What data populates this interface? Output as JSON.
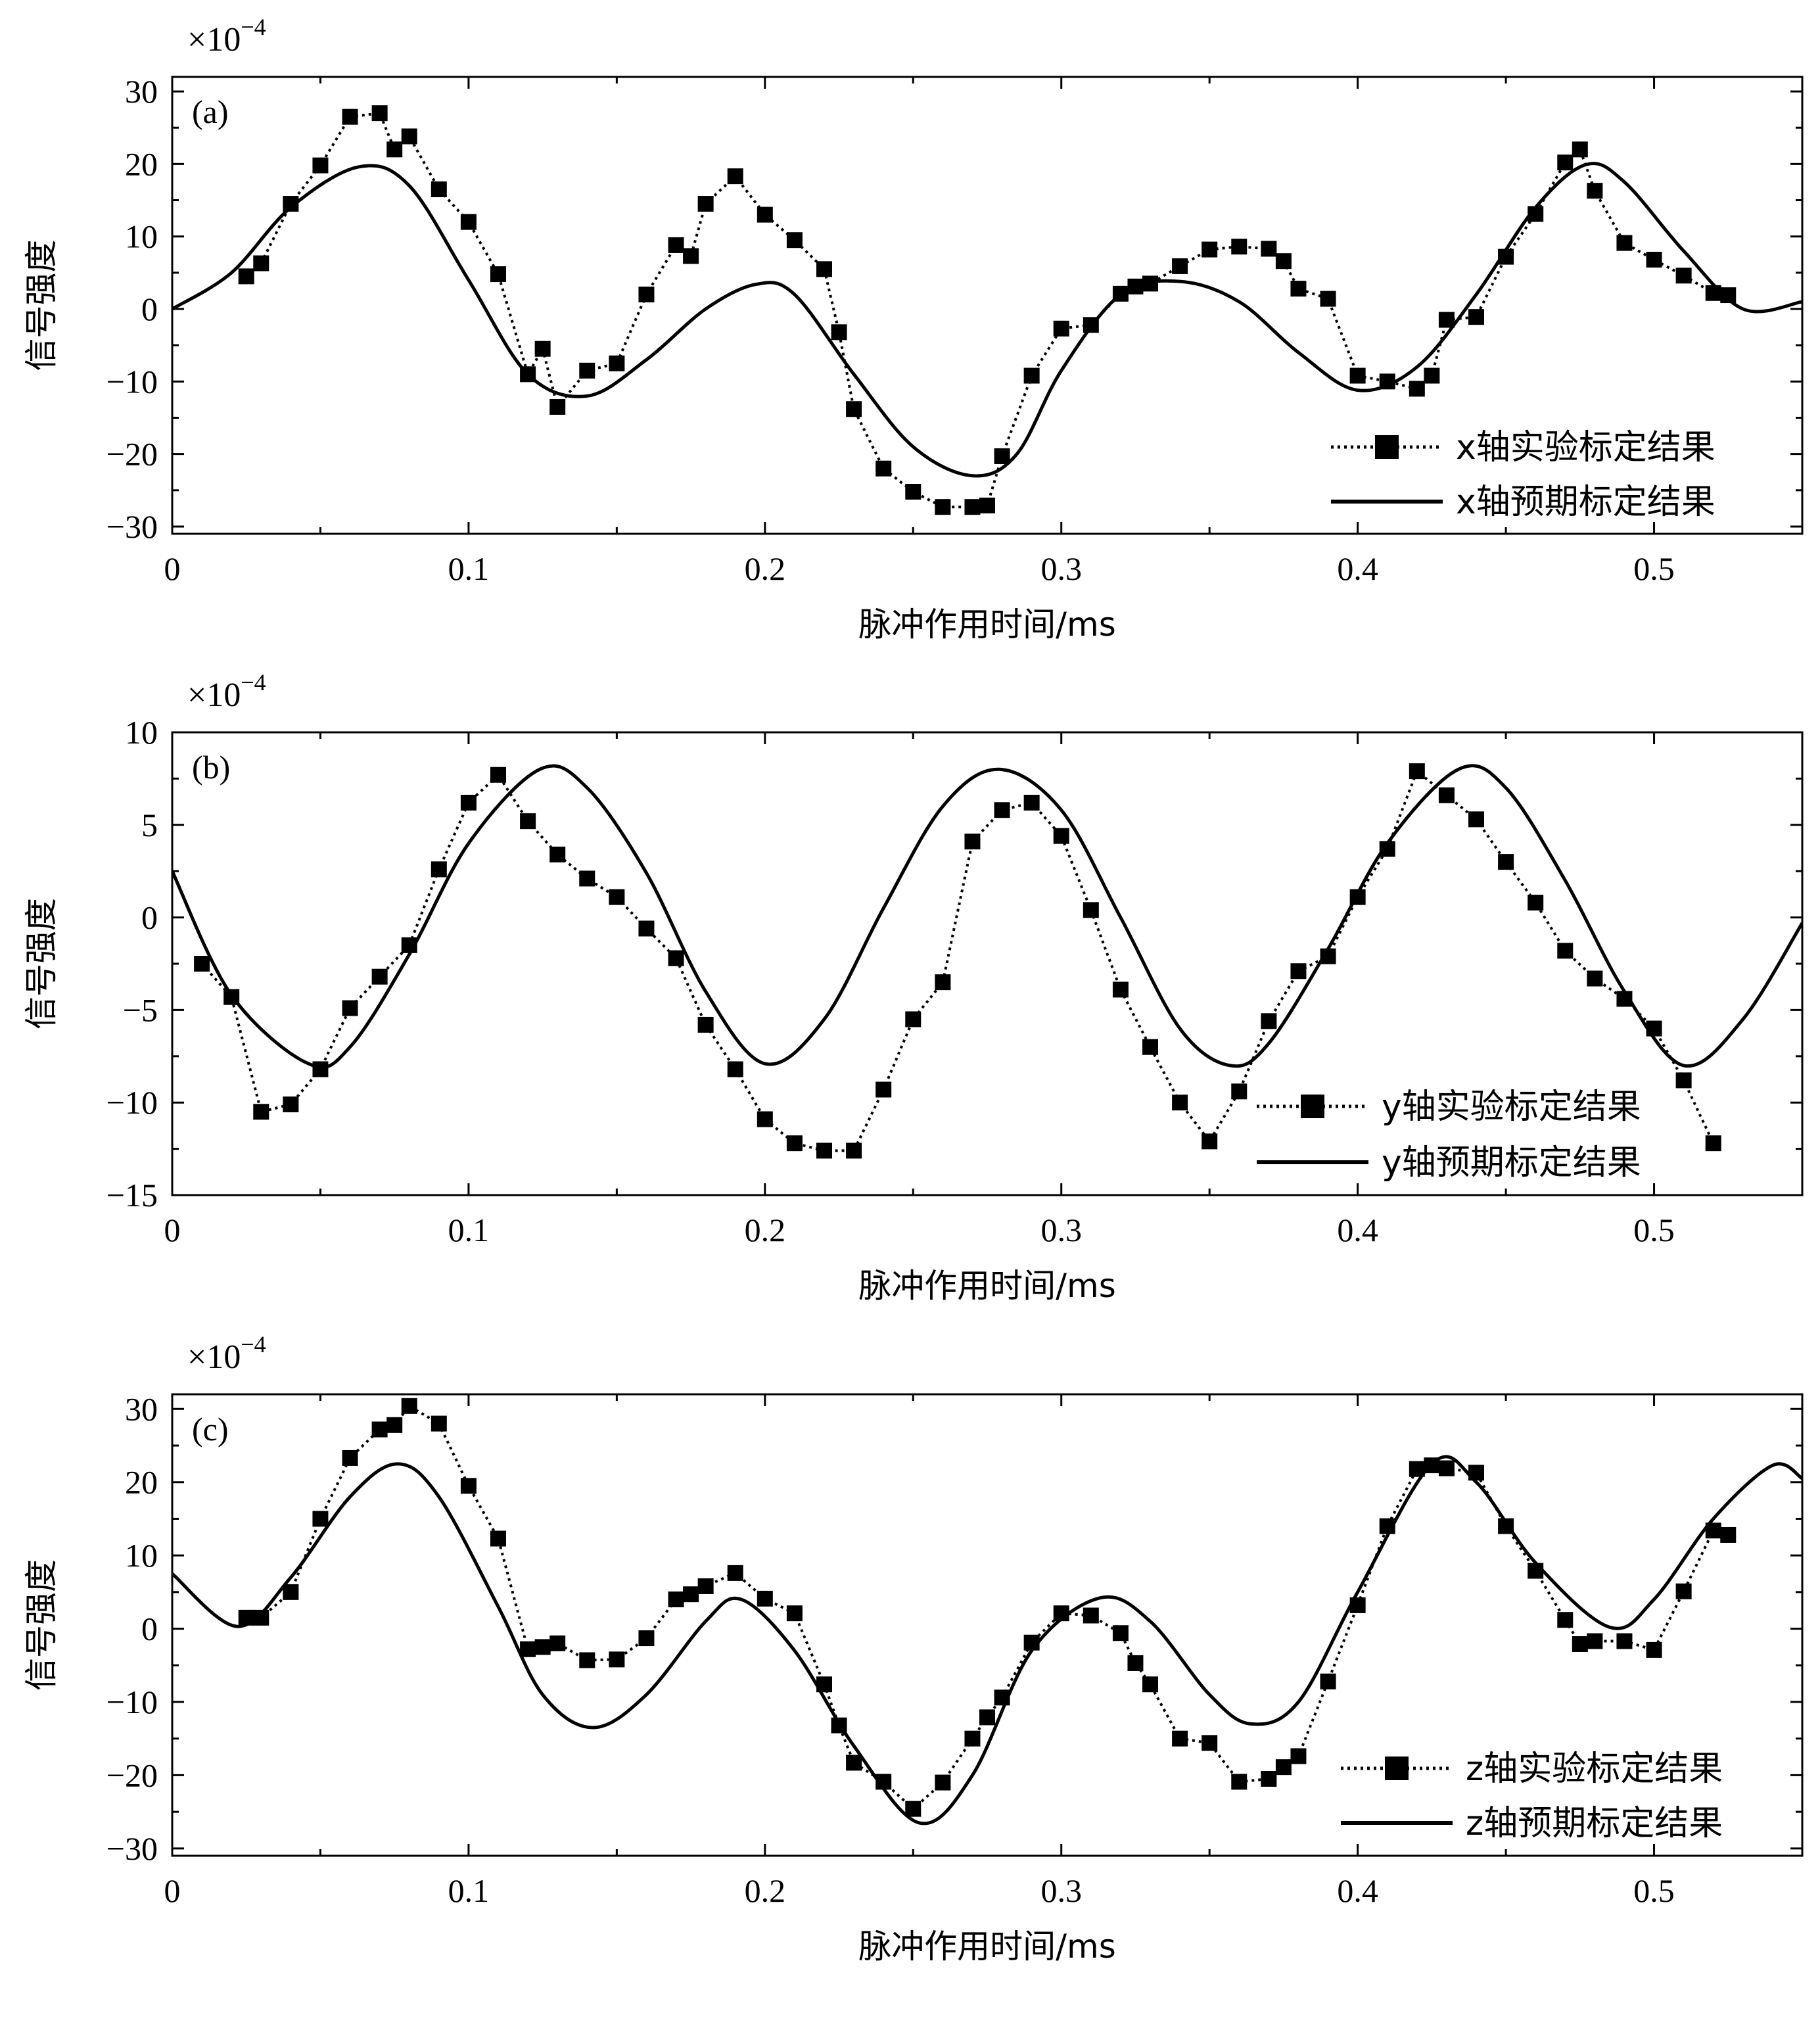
{
  "chart_data": [
    {
      "type": "line",
      "panel_label": "(a)",
      "scale_label": "×10",
      "scale_exponent": "−4",
      "xlabel": "脉冲作用时间/ms",
      "ylabel": "信号强度",
      "xlim": [
        0,
        0.55
      ],
      "ylim": [
        -31,
        32
      ],
      "xticks": [
        0,
        0.1,
        0.2,
        0.3,
        0.4,
        0.5
      ],
      "xtick_labels": [
        "0",
        "0.1",
        "0.2",
        "0.3",
        "0.4",
        "0.5"
      ],
      "yticks": [
        -30,
        -20,
        -10,
        0,
        10,
        20,
        30
      ],
      "ytick_labels": [
        "−30",
        "−20",
        "−10",
        "0",
        "10",
        "20",
        "30"
      ],
      "legend_position": "lower-right",
      "series": [
        {
          "name": "x轴实验标定结果",
          "style": "dotted-square",
          "x": [
            0.025,
            0.03,
            0.04,
            0.05,
            0.06,
            0.07,
            0.075,
            0.08,
            0.09,
            0.1,
            0.11,
            0.12,
            0.125,
            0.13,
            0.14,
            0.15,
            0.16,
            0.17,
            0.175,
            0.18,
            0.19,
            0.2,
            0.21,
            0.22,
            0.225,
            0.23,
            0.24,
            0.25,
            0.26,
            0.27,
            0.275,
            0.28,
            0.29,
            0.3,
            0.31,
            0.32,
            0.325,
            0.33,
            0.34,
            0.35,
            0.36,
            0.37,
            0.375,
            0.38,
            0.39,
            0.4,
            0.41,
            0.42,
            0.425,
            0.43,
            0.44,
            0.45,
            0.46,
            0.47,
            0.475,
            0.48,
            0.49,
            0.5,
            0.51,
            0.52,
            0.525
          ],
          "y": [
            4.5,
            6.3,
            14.5,
            19.8,
            26.5,
            27,
            22,
            23.8,
            16.5,
            12,
            4.8,
            -9,
            -5.5,
            -13.5,
            -8.5,
            -7.5,
            2,
            8.8,
            7.3,
            14.5,
            18.3,
            13,
            9.5,
            5.5,
            -3.2,
            -13.8,
            -22,
            -25.2,
            -27.3,
            -27.3,
            -27.1,
            -20.3,
            -9.2,
            -2.7,
            -2.2,
            2.1,
            3.1,
            3.5,
            5.9,
            8.2,
            8.6,
            8.3,
            6.6,
            2.8,
            1.4,
            -9.2,
            -10,
            -11,
            -9.2,
            -1.5,
            -1.1,
            7.2,
            13.1,
            20.2,
            22,
            16.3,
            9.1,
            6.8,
            4.6,
            2.2,
            1.9
          ]
        },
        {
          "name": "x轴预期标定结果",
          "style": "solid",
          "x": [
            0,
            0.02,
            0.04,
            0.063,
            0.08,
            0.1,
            0.12,
            0.14,
            0.16,
            0.18,
            0.197,
            0.21,
            0.23,
            0.25,
            0.27,
            0.285,
            0.3,
            0.32,
            0.34,
            0.36,
            0.38,
            0.4,
            0.42,
            0.44,
            0.46,
            0.477,
            0.49,
            0.51,
            0.53,
            0.55
          ],
          "y": [
            0,
            5,
            14,
            19.6,
            17,
            4,
            -9,
            -12,
            -7,
            0,
            3.4,
            2,
            -9,
            -19,
            -23,
            -20,
            -8.5,
            2,
            3.8,
            1,
            -6,
            -11.2,
            -8,
            2,
            14,
            19.9,
            17.5,
            8,
            0,
            1
          ]
        }
      ]
    },
    {
      "type": "line",
      "panel_label": "(b)",
      "scale_label": "×10",
      "scale_exponent": "−4",
      "xlabel": "脉冲作用时间/ms",
      "ylabel": "信号强度",
      "xlim": [
        0,
        0.55
      ],
      "ylim": [
        -15,
        10
      ],
      "xticks": [
        0,
        0.1,
        0.2,
        0.3,
        0.4,
        0.5
      ],
      "xtick_labels": [
        "0",
        "0.1",
        "0.2",
        "0.3",
        "0.4",
        "0.5"
      ],
      "yticks": [
        -15,
        -10,
        -5,
        0,
        5,
        10
      ],
      "ytick_labels": [
        "−15",
        "−10",
        "−5",
        "0",
        "5",
        "10"
      ],
      "legend_position": "lower-right",
      "series": [
        {
          "name": "y轴实验标定结果",
          "style": "dotted-square",
          "x": [
            0.01,
            0.02,
            0.03,
            0.04,
            0.05,
            0.06,
            0.07,
            0.08,
            0.09,
            0.1,
            0.11,
            0.12,
            0.13,
            0.14,
            0.15,
            0.16,
            0.17,
            0.18,
            0.19,
            0.2,
            0.21,
            0.22,
            0.23,
            0.24,
            0.25,
            0.26,
            0.27,
            0.28,
            0.29,
            0.3,
            0.31,
            0.32,
            0.33,
            0.34,
            0.35,
            0.36,
            0.37,
            0.38,
            0.39,
            0.4,
            0.41,
            0.42,
            0.43,
            0.44,
            0.45,
            0.46,
            0.47,
            0.48,
            0.49,
            0.5,
            0.51,
            0.52
          ],
          "y": [
            -2.5,
            -4.3,
            -10.5,
            -10.1,
            -8.2,
            -4.9,
            -3.2,
            -1.5,
            2.6,
            6.2,
            7.7,
            5.2,
            3.4,
            2.1,
            1.1,
            -0.6,
            -2.2,
            -5.8,
            -8.2,
            -10.9,
            -12.2,
            -12.6,
            -12.6,
            -9.3,
            -5.5,
            -3.5,
            4.1,
            5.8,
            6.2,
            4.4,
            0.4,
            -3.9,
            -7,
            -10,
            -12.1,
            -9.4,
            -5.6,
            -2.9,
            -2.1,
            1.1,
            3.7,
            7.9,
            6.6,
            5.3,
            3,
            0.8,
            -1.8,
            -3.3,
            -4.4,
            -6,
            -8.8,
            -12.2
          ]
        },
        {
          "name": "y轴预期标定结果",
          "style": "solid",
          "x": [
            0,
            0.02,
            0.046,
            0.06,
            0.08,
            0.1,
            0.124,
            0.14,
            0.16,
            0.18,
            0.2,
            0.22,
            0.24,
            0.26,
            0.279,
            0.3,
            0.32,
            0.34,
            0.357,
            0.37,
            0.39,
            0.41,
            0.434,
            0.45,
            0.47,
            0.49,
            0.51,
            0.53,
            0.55
          ],
          "y": [
            2.5,
            -4.2,
            -7.9,
            -7,
            -2,
            4,
            8,
            7,
            2.4,
            -4,
            -7.9,
            -5.5,
            0.5,
            6,
            8,
            5.8,
            0,
            -6,
            -8,
            -6.8,
            -1.7,
            4,
            8,
            7,
            2,
            -4,
            -8,
            -5.5,
            -0.3
          ]
        }
      ]
    },
    {
      "type": "line",
      "panel_label": "(c)",
      "scale_label": "×10",
      "scale_exponent": "−4",
      "xlabel": "脉冲作用时间/ms",
      "ylabel": "信号强度",
      "xlim": [
        0,
        0.55
      ],
      "ylim": [
        -31,
        32
      ],
      "xticks": [
        0,
        0.1,
        0.2,
        0.3,
        0.4,
        0.5
      ],
      "xtick_labels": [
        "0",
        "0.1",
        "0.2",
        "0.3",
        "0.4",
        "0.5"
      ],
      "yticks": [
        -30,
        -20,
        -10,
        0,
        10,
        20,
        30
      ],
      "ytick_labels": [
        "−30",
        "−20",
        "−10",
        "0",
        "10",
        "20",
        "30"
      ],
      "legend_position": "lower-right",
      "series": [
        {
          "name": "z轴实验标定结果",
          "style": "dotted-square",
          "x": [
            0.025,
            0.03,
            0.04,
            0.05,
            0.06,
            0.07,
            0.075,
            0.08,
            0.09,
            0.1,
            0.11,
            0.12,
            0.125,
            0.13,
            0.14,
            0.15,
            0.16,
            0.17,
            0.175,
            0.18,
            0.19,
            0.2,
            0.21,
            0.22,
            0.225,
            0.23,
            0.24,
            0.25,
            0.26,
            0.27,
            0.275,
            0.28,
            0.29,
            0.3,
            0.31,
            0.32,
            0.325,
            0.33,
            0.34,
            0.35,
            0.36,
            0.37,
            0.375,
            0.38,
            0.39,
            0.4,
            0.41,
            0.42,
            0.425,
            0.43,
            0.44,
            0.45,
            0.46,
            0.47,
            0.475,
            0.48,
            0.49,
            0.5,
            0.51,
            0.52,
            0.525
          ],
          "y": [
            1.5,
            1.5,
            5,
            15,
            23.3,
            27.2,
            27.8,
            30.4,
            28,
            19.5,
            12.3,
            -2.8,
            -2.5,
            -2,
            -4.3,
            -4.2,
            -1.3,
            4,
            4.7,
            5.8,
            7.6,
            4.1,
            2.1,
            -7.6,
            -13.2,
            -18.3,
            -20.9,
            -24.6,
            -21,
            -15,
            -12.1,
            -9.4,
            -1.9,
            2.1,
            1.8,
            -0.6,
            -4.7,
            -7.6,
            -15,
            -15.6,
            -20.9,
            -20.5,
            -18.9,
            -17.4,
            -7.2,
            3.2,
            14,
            21.8,
            22.3,
            21.9,
            21.3,
            14,
            7.9,
            1.2,
            -2.1,
            -1.7,
            -1.7,
            -2.9,
            5.1,
            13.4,
            12.8
          ]
        },
        {
          "name": "z轴预期标定结果",
          "style": "solid",
          "x": [
            0,
            0.022,
            0.04,
            0.06,
            0.076,
            0.09,
            0.11,
            0.125,
            0.142,
            0.16,
            0.18,
            0.192,
            0.21,
            0.23,
            0.252,
            0.27,
            0.29,
            0.313,
            0.33,
            0.35,
            0.364,
            0.38,
            0.4,
            0.425,
            0.44,
            0.46,
            0.485,
            0.5,
            0.52,
            0.54,
            0.55
          ],
          "y": [
            7.5,
            0.3,
            7,
            18,
            22.5,
            18,
            3,
            -9,
            -13.5,
            -9,
            1,
            4,
            -3,
            -16,
            -26.5,
            -20,
            -3,
            4.2,
            1,
            -9,
            -13,
            -10,
            5,
            22.5,
            20,
            9,
            0.2,
            4,
            15,
            22.3,
            20.5
          ]
        }
      ]
    }
  ]
}
